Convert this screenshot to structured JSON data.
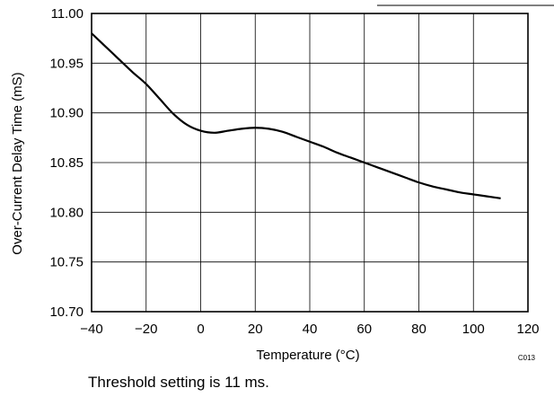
{
  "chart_data": {
    "type": "line",
    "title": "",
    "xlabel": "Temperature (°C)",
    "ylabel": "Over-Current Delay Time (mS)",
    "xlim": [
      -40,
      120
    ],
    "ylim": [
      10.7,
      11.0
    ],
    "x_ticks": [
      -40,
      -20,
      0,
      20,
      40,
      60,
      80,
      100,
      120
    ],
    "x_tick_labels": [
      "−40",
      "−20",
      "0",
      "20",
      "40",
      "60",
      "80",
      "100",
      "120"
    ],
    "y_ticks": [
      10.7,
      10.75,
      10.8,
      10.85,
      10.9,
      10.95,
      11.0
    ],
    "y_tick_labels": [
      "10.70",
      "10.75",
      "10.80",
      "10.85",
      "10.90",
      "10.95",
      "11.00"
    ],
    "grid": true,
    "series": [
      {
        "x": [
          -40,
          -35,
          -30,
          -25,
          -20,
          -15,
          -10,
          -5,
          0,
          5,
          10,
          15,
          20,
          25,
          30,
          35,
          40,
          45,
          50,
          55,
          60,
          65,
          70,
          75,
          80,
          85,
          90,
          95,
          100,
          105,
          110
        ],
        "y": [
          10.98,
          10.967,
          10.954,
          10.941,
          10.929,
          10.914,
          10.899,
          10.888,
          10.882,
          10.88,
          10.882,
          10.884,
          10.885,
          10.884,
          10.881,
          10.876,
          10.871,
          10.866,
          10.86,
          10.855,
          10.85,
          10.845,
          10.84,
          10.835,
          10.83,
          10.826,
          10.823,
          10.82,
          10.818,
          10.816,
          10.814
        ],
        "color": "#000000"
      }
    ],
    "figure_id": "C013"
  },
  "caption": "Threshold setting is 11 ms."
}
